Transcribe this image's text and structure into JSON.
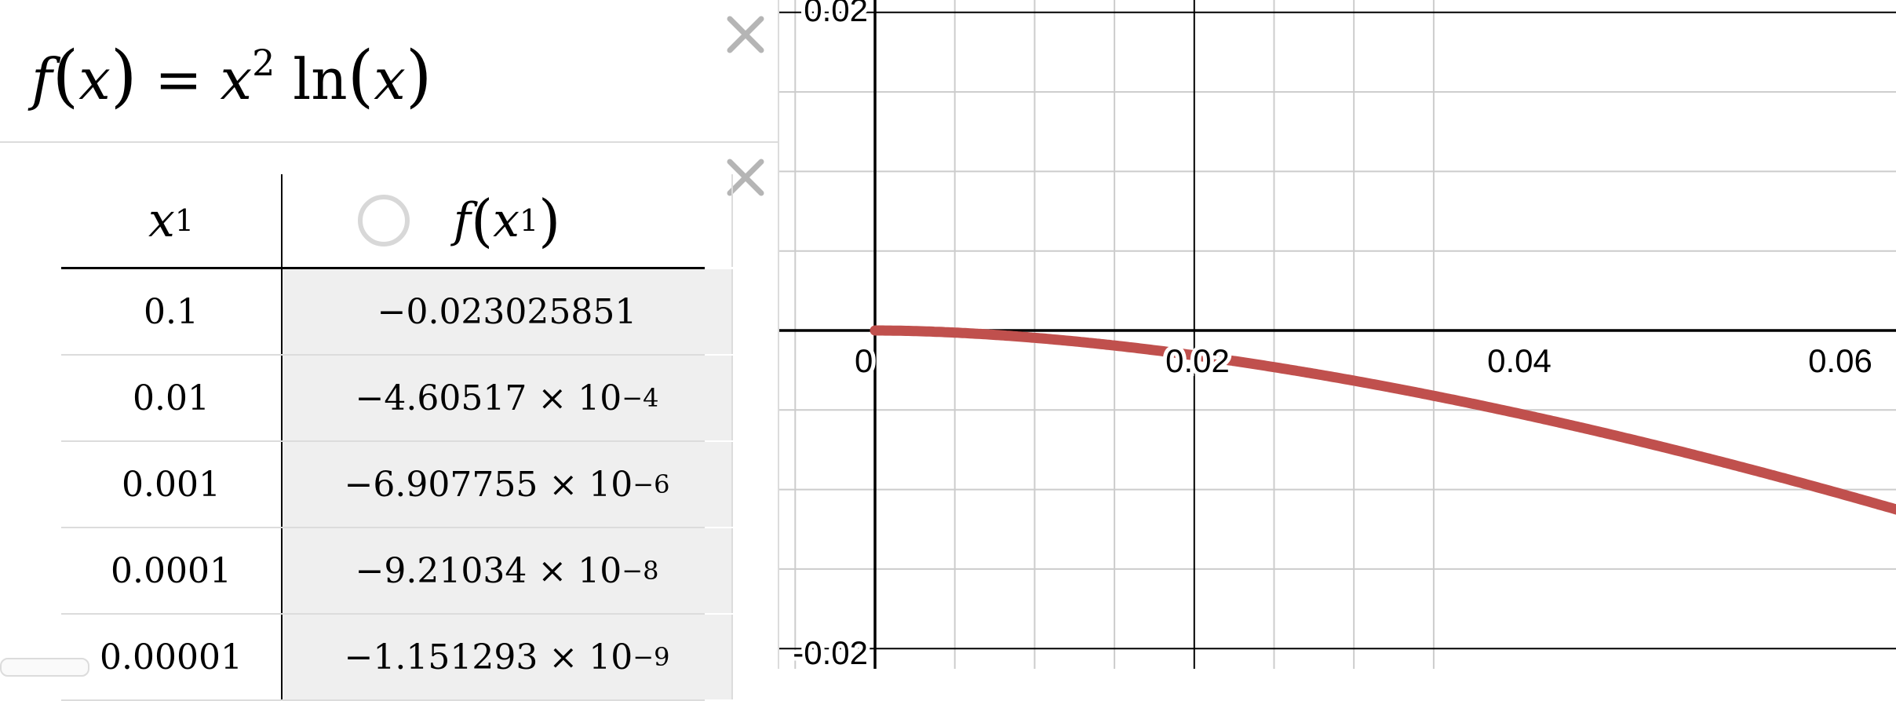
{
  "expression": {
    "f": "f",
    "lparen": "(",
    "x": "x",
    "rparen": ")",
    "equals": "=",
    "x_base": "x",
    "exponent": "2",
    "ln": "ln",
    "lparen2": "(",
    "arg": "x",
    "rparen2": ")"
  },
  "table": {
    "headers": {
      "col1_var": "x",
      "col1_sub": "1",
      "col2_f": "f",
      "col2_var": "x",
      "col2_sub": "1"
    },
    "rows": [
      {
        "x": "0.1",
        "mantissa": "−0.023025851",
        "times": "",
        "base": "",
        "exp": ""
      },
      {
        "x": "0.01",
        "mantissa": "−4.60517",
        "times": "×",
        "base": "10",
        "exp": "−4"
      },
      {
        "x": "0.001",
        "mantissa": "−6.907755",
        "times": "×",
        "base": "10",
        "exp": "−6"
      },
      {
        "x": "0.0001",
        "mantissa": "−9.21034",
        "times": "×",
        "base": "10",
        "exp": "−8"
      },
      {
        "x": "0.00001",
        "mantissa": "−1.151293",
        "times": "×",
        "base": "10",
        "exp": "−9"
      }
    ]
  },
  "graph": {
    "x_ticks": [
      "0",
      "0.02",
      "0.04",
      "0.06"
    ],
    "y_ticks": [
      "0.02",
      "-0.02"
    ],
    "curve_color": "#c0504d",
    "axis_color": "#000000",
    "grid_color": "#cccccc"
  },
  "icons": {
    "close": "close-icon",
    "toggle": "circle-icon"
  }
}
